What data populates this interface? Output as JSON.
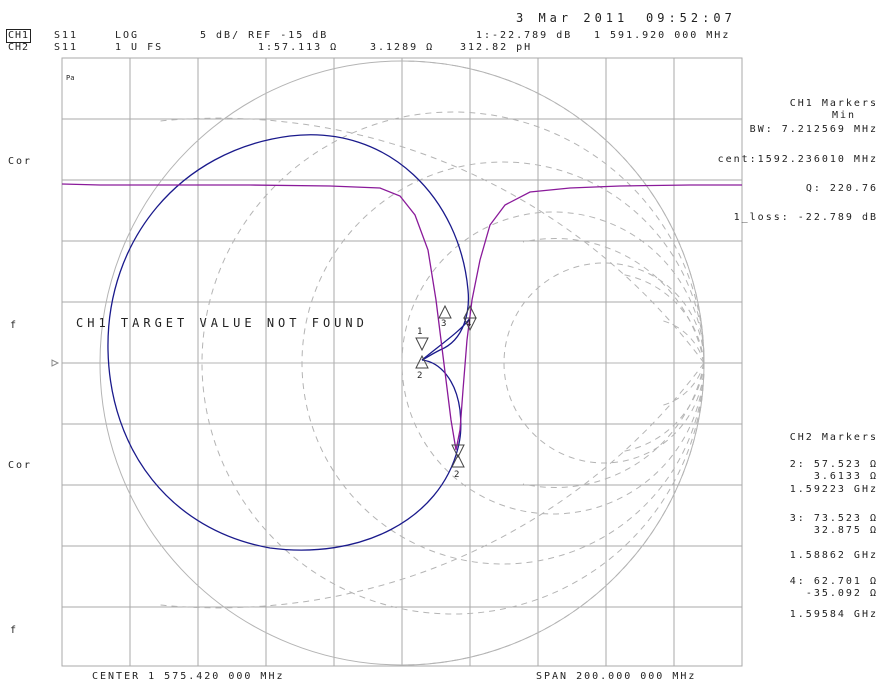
{
  "header": {
    "date": "3 Mar 2011",
    "time": "09:52:07",
    "ch1_label": "CH1",
    "ch1_param": "S11",
    "ch1_format": "LOG",
    "ch1_scale": "5 dB/ REF -15 dB",
    "ch1_marker": "1:-22.789 dB",
    "ch1_freq": "1 591.920 000 MHz",
    "ch2_label": "CH2",
    "ch2_param": "S11",
    "ch2_format": "1 U FS",
    "ch2_marker": "1:57.113 Ω",
    "ch2_reactance": "3.1289 Ω",
    "ch2_inductance": "312.82 pH"
  },
  "left_side": {
    "cor1": "Cor",
    "f1": "f",
    "cor2": "Cor",
    "f2": "f"
  },
  "overlay_message": "CH1 TARGET VALUE NOT FOUND",
  "plot_corner_symbol": "Pa",
  "ch1_markers": {
    "title": "CH1 Markers",
    "subtitle": "Min",
    "bw": "BW: 7.212569 MHz",
    "cent": "cent:1592.236010 MHz",
    "q": "Q: 220.76",
    "loss": "1_loss: -22.789 dB"
  },
  "ch2_markers": {
    "title": "CH2 Markers",
    "m2_r": "2: 57.523 Ω",
    "m2_x": "3.6133 Ω",
    "m2_f": "1.59223 GHz",
    "m3_r": "3: 73.523 Ω",
    "m3_x": "32.875 Ω",
    "m3_f": "1.58862 GHz",
    "m4_r": "4: 62.701 Ω",
    "m4_x": "-35.092 Ω",
    "m4_f": "1.59584 GHz"
  },
  "footer": {
    "center": "CENTER 1 575.420 000 MHz",
    "span": "SPAN 200.000 000 MHz"
  },
  "marker_labels": [
    "1",
    "3",
    "4",
    "2",
    "2"
  ],
  "colors": {
    "background": "#ffffff",
    "graticule": "#aaaaaa",
    "smith_grid": "#b4b4b4",
    "ch1_trace": "#8a1a9a",
    "ch2_trace": "#1a1a8c",
    "text": "#222222"
  }
}
